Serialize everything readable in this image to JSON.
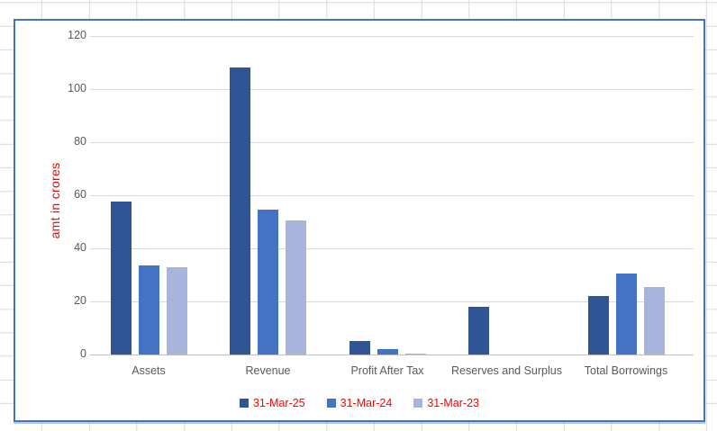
{
  "sheet": {
    "grid_color": "#D9D9D9",
    "background": "#FFFFFF"
  },
  "chart": {
    "border_color": "#4472C4",
    "background": "#FFFFFF",
    "y_axis_title": "amt in crores",
    "y_axis_title_color": "#FF0000",
    "tick_label_color": "#595959",
    "category_label_color": "#595959",
    "gridline_color": "#D9D9D9",
    "axis_line_color": "#BFBFBF",
    "legend_text_color": "#FF0000"
  },
  "chart_data": {
    "type": "bar",
    "title": "",
    "xlabel": "",
    "ylabel": "amt in crores",
    "ylim": [
      0,
      120
    ],
    "ytick_step": 20,
    "grid": true,
    "legend_position": "bottom",
    "categories": [
      "Assets",
      "Revenue",
      "Profit After Tax",
      "Reserves and Surplus",
      "Total Borrowings"
    ],
    "series": [
      {
        "name": "31-Mar-25",
        "color": "#2F5597",
        "values": [
          57.5,
          108,
          5,
          18,
          22
        ]
      },
      {
        "name": "31-Mar-24",
        "color": "#4472C4",
        "values": [
          33.5,
          54.5,
          2,
          0,
          30.5
        ]
      },
      {
        "name": "31-Mar-23",
        "color": "#A9B4DC",
        "values": [
          33,
          50.5,
          0.5,
          0,
          25.5
        ]
      }
    ]
  }
}
